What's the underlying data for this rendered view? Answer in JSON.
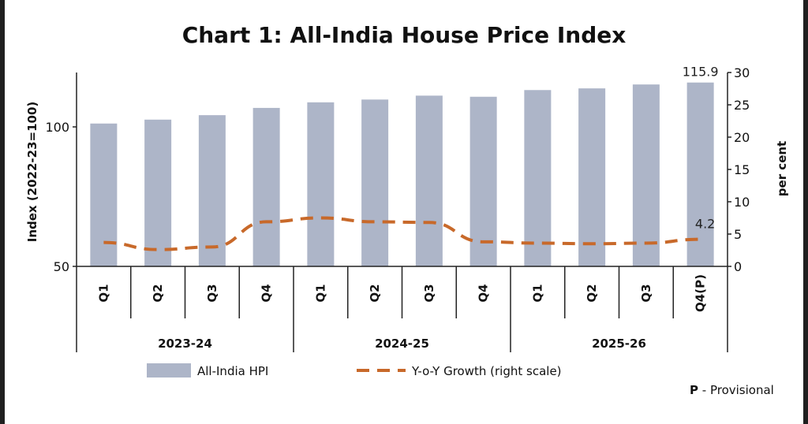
{
  "chart_data": {
    "type": "bar",
    "title": "Chart 1: All-India House Price Index",
    "categories": [
      "Q1",
      "Q2",
      "Q3",
      "Q4",
      "Q1",
      "Q2",
      "Q3",
      "Q4",
      "Q1",
      "Q2",
      "Q3",
      "Q4(P)"
    ],
    "groups": [
      {
        "label": "2023-24",
        "count": 4
      },
      {
        "label": "2024-25",
        "count": 4
      },
      {
        "label": "2025-26",
        "count": 4
      }
    ],
    "series": [
      {
        "name": "All-India HPI",
        "type": "bar",
        "axis": "left",
        "color": "#adb5c8",
        "values": [
          101.2,
          102.6,
          104.2,
          106.8,
          108.8,
          109.8,
          111.2,
          110.8,
          113.2,
          113.8,
          115.2,
          115.9
        ]
      },
      {
        "name": "Y-o-Y Growth (right scale)",
        "type": "line",
        "axis": "right",
        "color": "#c8692a",
        "style": "dashed",
        "values": [
          3.7,
          2.6,
          3.0,
          6.9,
          7.5,
          6.9,
          6.8,
          3.8,
          3.6,
          3.5,
          3.6,
          4.2
        ]
      }
    ],
    "ylabel": "Index (2022-23=100)",
    "ylim": [
      50,
      120
    ],
    "yticks": [
      "50",
      "100"
    ],
    "y2label": "per cent",
    "y2lim": [
      0,
      30
    ],
    "y2ticks": [
      "0",
      "5",
      "10",
      "15",
      "20",
      "25",
      "30"
    ],
    "data_labels": {
      "bar_last": "115.9",
      "line_last": "4.2"
    },
    "note": "Provisional",
    "note_prefix": "P",
    "grid": false,
    "legend_position": "bottom"
  }
}
